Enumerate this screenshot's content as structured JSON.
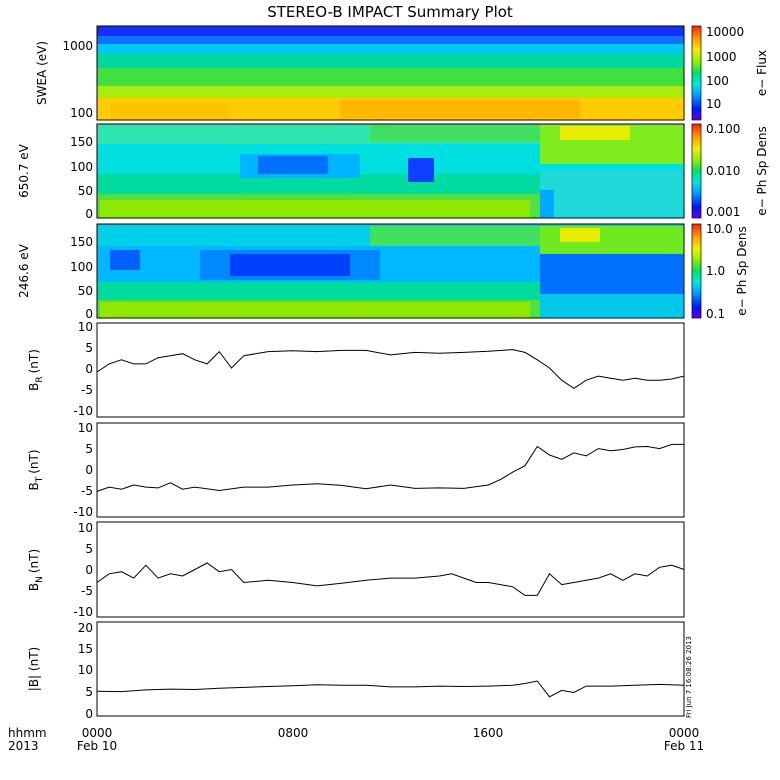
{
  "title": "STEREO-B IMPACT Summary Plot",
  "footer": {
    "row1_left": "hhmm",
    "row2_left": "2013",
    "time_ticks": [
      "0000",
      "0800",
      "1600",
      "0000"
    ],
    "date_left": "Feb 10",
    "date_right": "Feb 11"
  },
  "side_stamp": "Fri Jun  7 16:08:26 2013",
  "colors": {
    "colormap": [
      "#6a00d6",
      "#0018ff",
      "#00a0ff",
      "#00e6e6",
      "#00e070",
      "#8ef000",
      "#f0f000",
      "#ff9a00",
      "#ff2000"
    ],
    "line": "#000000",
    "frame": "#000000"
  },
  "chart_data": [
    {
      "type": "heatmap",
      "ylabel": "SWEA (eV)",
      "y_scale": "log",
      "ylim": [
        90,
        2000
      ],
      "y_tick_labels": [
        "1000",
        "100"
      ],
      "colorbar": {
        "label": "e− Flux",
        "scale": "log",
        "range": [
          3,
          15000
        ],
        "tick_labels": [
          "10000",
          "1000",
          "100",
          "10"
        ]
      }
    },
    {
      "type": "heatmap",
      "ylabel": "650.7 eV",
      "ylim": [
        -10,
        180
      ],
      "y_tick_labels": [
        "150",
        "100",
        "50",
        "0"
      ],
      "colorbar": {
        "label": "e− Ph Sp Dens",
        "scale": "log",
        "range": [
          0.001,
          0.1
        ],
        "tick_labels": [
          "0.100",
          "0.010",
          "0.001"
        ]
      }
    },
    {
      "type": "heatmap",
      "ylabel": "246.6 eV",
      "ylim": [
        -10,
        180
      ],
      "y_tick_labels": [
        "150",
        "100",
        "50",
        "0"
      ],
      "colorbar": {
        "label": "e− Ph Sp Dens",
        "scale": "log",
        "range": [
          0.1,
          10
        ],
        "tick_labels": [
          "10.0",
          "1.0",
          "0.1"
        ]
      }
    },
    {
      "type": "line",
      "ylabel_main": "B",
      "ylabel_sub": "R",
      "ylabel_unit": "(nT)",
      "ylim": [
        -12,
        11
      ],
      "y_tick_labels": [
        "10",
        "5",
        "0",
        "-5",
        "-10"
      ],
      "x_hours": [
        0,
        0.5,
        1,
        1.5,
        2,
        2.5,
        3,
        3.5,
        4,
        4.5,
        5,
        5.5,
        6,
        7,
        8,
        9,
        10,
        11,
        12,
        13,
        14,
        15,
        16,
        17,
        17.5,
        18,
        18.5,
        19,
        19.5,
        20,
        20.5,
        21,
        21.5,
        22,
        22.5,
        23,
        23.5,
        24
      ],
      "values": [
        -1,
        1,
        2,
        1,
        1,
        2.5,
        3,
        3.5,
        2,
        1,
        4,
        0,
        3,
        4,
        4.2,
        4,
        4.3,
        4.3,
        3.2,
        3.8,
        3.6,
        3.8,
        4.1,
        4.5,
        3.8,
        2,
        0,
        -3,
        -5,
        -3,
        -2,
        -2.5,
        -3,
        -2.5,
        -3,
        -3,
        -2.7,
        -2
      ]
    },
    {
      "type": "line",
      "ylabel_main": "B",
      "ylabel_sub": "T",
      "ylabel_unit": "(nT)",
      "ylim": [
        -11,
        11
      ],
      "y_tick_labels": [
        "10",
        "5",
        "0",
        "-5",
        "-10"
      ],
      "x_hours": [
        0,
        0.5,
        1,
        1.5,
        2,
        2.5,
        3,
        3.5,
        4,
        5,
        6,
        7,
        8,
        9,
        10,
        11,
        12,
        13,
        14,
        15,
        16,
        16.5,
        17,
        17.5,
        18,
        18.5,
        19,
        19.5,
        20,
        20.5,
        21,
        21.5,
        22,
        22.5,
        23,
        23.5,
        24
      ],
      "values": [
        -5,
        -4,
        -4.5,
        -3.5,
        -4,
        -4.2,
        -3,
        -4.5,
        -4,
        -4.8,
        -4,
        -4,
        -3.5,
        -3.2,
        -3.6,
        -4.4,
        -3.5,
        -4.3,
        -4.2,
        -4.3,
        -3.5,
        -2.2,
        -0.5,
        1,
        5.5,
        3.5,
        2.5,
        4,
        3.3,
        5,
        4.5,
        4.8,
        5.4,
        5.5,
        5,
        6,
        6
      ]
    },
    {
      "type": "line",
      "ylabel_main": "B",
      "ylabel_sub": "N",
      "ylabel_unit": "(nT)",
      "ylim": [
        -11,
        11
      ],
      "y_tick_labels": [
        "10",
        "5",
        "0",
        "-5",
        "-10"
      ],
      "x_hours": [
        0,
        0.5,
        1,
        1.5,
        2,
        2.5,
        3,
        3.5,
        4,
        4.5,
        5,
        5.5,
        6,
        7,
        8,
        9,
        10,
        11,
        12,
        13,
        14,
        14.5,
        15,
        15.5,
        16,
        17,
        17.5,
        18,
        18.5,
        19,
        19.5,
        20,
        20.5,
        21,
        21.5,
        22,
        22.5,
        23,
        23.5,
        24
      ],
      "values": [
        -3,
        -1,
        -0.5,
        -2,
        1,
        -2,
        -1,
        -1.5,
        0,
        1.5,
        -0.5,
        0,
        -3,
        -2.5,
        -3,
        -3.8,
        -3.2,
        -2.5,
        -2,
        -2,
        -1.5,
        -1,
        -2,
        -3,
        -3,
        -4,
        -6,
        -6,
        -1,
        -3.5,
        -3,
        -2.5,
        -2,
        -1,
        -2.5,
        -1,
        -1.5,
        0.5,
        1,
        0
      ]
    },
    {
      "type": "line",
      "ylabel": "|B| (nT)",
      "ylim": [
        -1,
        21
      ],
      "y_tick_labels": [
        "20",
        "15",
        "10",
        "5",
        "0"
      ],
      "x_hours": [
        0,
        1,
        2,
        3,
        4,
        5,
        6,
        7,
        8,
        9,
        10,
        11,
        12,
        13,
        14,
        15,
        16,
        17,
        17.5,
        18,
        18.5,
        19,
        19.5,
        20,
        21,
        22,
        23,
        24
      ],
      "values": [
        4.8,
        4.7,
        5.1,
        5.3,
        5.2,
        5.5,
        5.7,
        5.9,
        6.1,
        6.3,
        6.2,
        6.2,
        5.8,
        5.8,
        6.0,
        5.9,
        6.0,
        6.2,
        6.6,
        7.2,
        3.5,
        5.0,
        4.5,
        6.0,
        6.0,
        6.2,
        6.4,
        6.2
      ]
    }
  ]
}
